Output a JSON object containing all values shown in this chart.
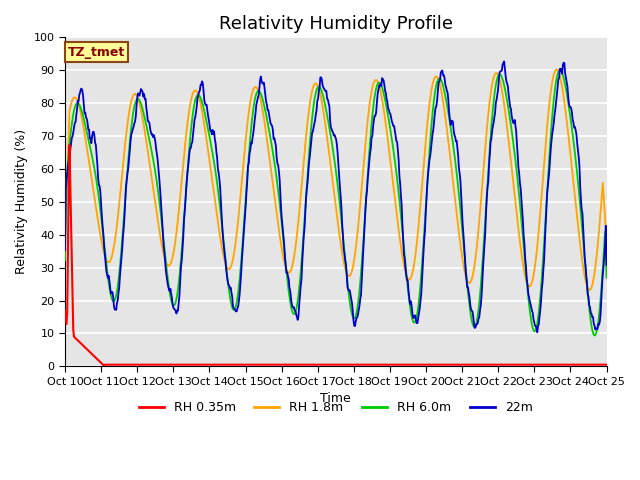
{
  "title": "Relativity Humidity Profile",
  "xlabel": "Time",
  "ylabel": "Relativity Humidity (%)",
  "ylim": [
    0,
    100
  ],
  "yticks": [
    0,
    10,
    20,
    30,
    40,
    50,
    60,
    70,
    80,
    90,
    100
  ],
  "annotation_text": "TZ_tmet",
  "annotation_color": "#8B0000",
  "annotation_box_color": "#FFFF99",
  "bg_color": "#E5E5E5",
  "grid_color": "white",
  "line_colors": {
    "red": "#FF0000",
    "orange": "#FFA500",
    "green": "#00CC00",
    "blue": "#0000CD"
  },
  "legend_labels": [
    "RH 0.35m",
    "RH 1.8m",
    "RH 6.0m",
    "22m"
  ],
  "x_tick_labels": [
    "Oct 10",
    "Oct 11",
    "Oct 12",
    "Oct 13",
    "Oct 14",
    "Oct 15",
    "Oct 16",
    "Oct 17",
    "Oct 18",
    "Oct 19",
    "Oct 20",
    "Oct 21",
    "Oct 22",
    "Oct 23",
    "Oct 24",
    "Oct 25"
  ],
  "n_points": 720,
  "title_fontsize": 13,
  "axis_label_fontsize": 9,
  "tick_fontsize": 8
}
